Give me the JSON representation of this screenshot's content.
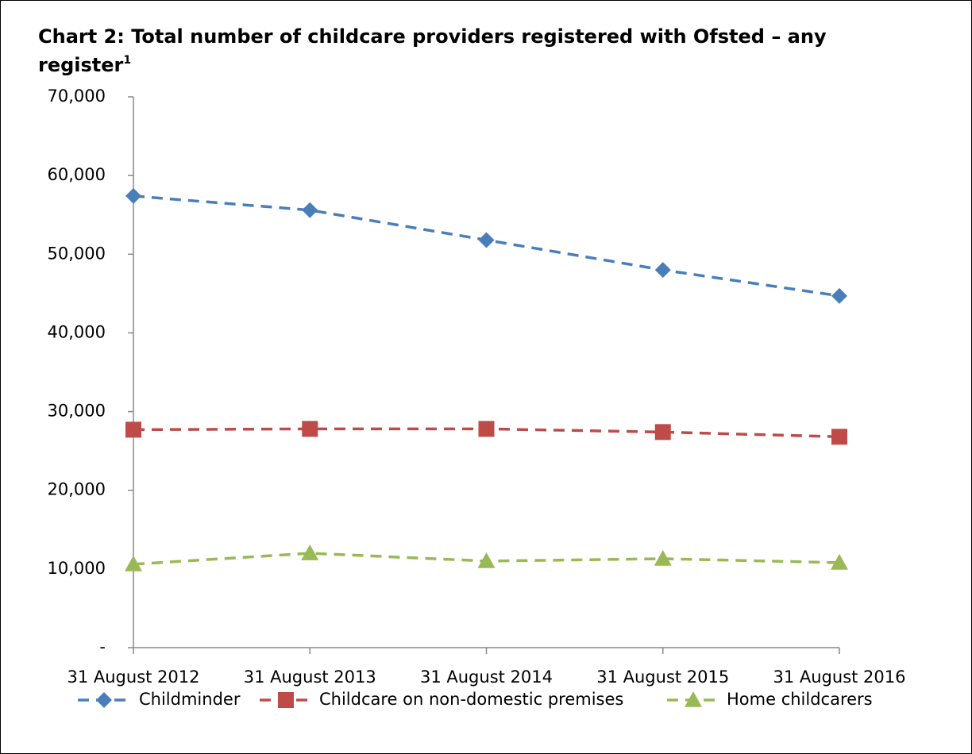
{
  "chart_data": {
    "type": "line",
    "title": "Chart 2: Total number of childcare providers registered with Ofsted – any register",
    "title_footnote_marker": "1",
    "categories": [
      "31 August 2012",
      "31 August 2013",
      "31 August 2014",
      "31 August 2015",
      "31 August 2016"
    ],
    "series": [
      {
        "name": "Childminder",
        "color": "#4a7ebb",
        "marker": "diamond",
        "values": [
          57400,
          55600,
          51800,
          48000,
          44700
        ]
      },
      {
        "name": "Childcare on non-domestic premises",
        "color": "#be4b48",
        "marker": "square",
        "values": [
          27700,
          27800,
          27800,
          27400,
          26800
        ]
      },
      {
        "name": "Home childcarers",
        "color": "#98b954",
        "marker": "triangle",
        "values": [
          10600,
          12000,
          11000,
          11300,
          10800
        ]
      }
    ],
    "ylim": [
      0,
      70000
    ],
    "yticks": [
      {
        "value": 0,
        "label": "-"
      },
      {
        "value": 10000,
        "label": "10,000"
      },
      {
        "value": 20000,
        "label": "20,000"
      },
      {
        "value": 30000,
        "label": "30,000"
      },
      {
        "value": 40000,
        "label": "40,000"
      },
      {
        "value": 50000,
        "label": "50,000"
      },
      {
        "value": 60000,
        "label": "60,000"
      },
      {
        "value": 70000,
        "label": "70,000"
      }
    ],
    "grid": false,
    "legend": "bottom"
  }
}
